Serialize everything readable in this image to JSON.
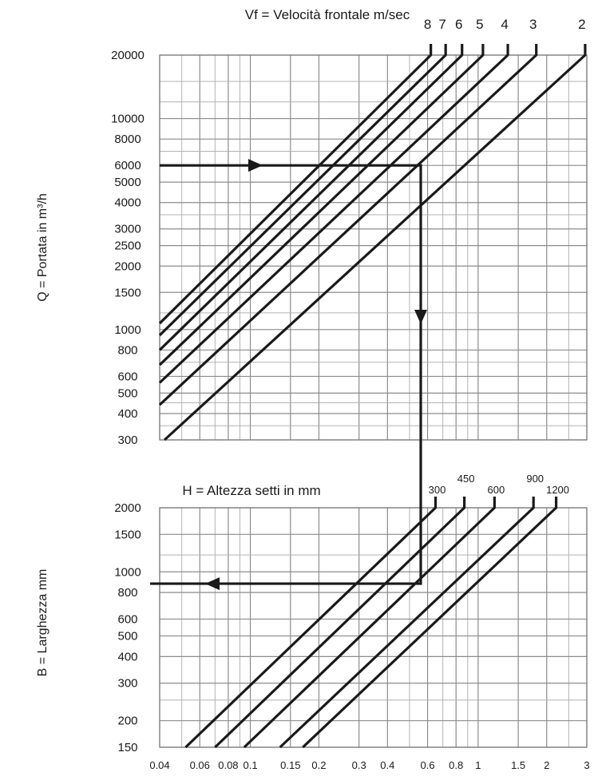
{
  "chart_data": [
    {
      "type": "line",
      "title": "Vf = Velocità frontale m/sec",
      "xlabel": "",
      "ylabel": "Q = Portata in m³/h",
      "y_scale": "log",
      "ylim": [
        300,
        20000
      ],
      "y_ticks": [
        "20000",
        "10000",
        "8000",
        "6000",
        "5000",
        "4000",
        "3000",
        "2500",
        "2000",
        "1500",
        "1000",
        "800",
        "600",
        "500",
        "400",
        "300"
      ],
      "grid": true,
      "series": [
        {
          "name": "8",
          "x": [
            0.04,
            0.62
          ],
          "y": [
            1070,
            20000
          ]
        },
        {
          "name": "7",
          "x": [
            0.04,
            0.72
          ],
          "y": [
            940,
            20000
          ]
        },
        {
          "name": "6",
          "x": [
            0.04,
            0.85
          ],
          "y": [
            800,
            20000
          ]
        },
        {
          "name": "5",
          "x": [
            0.04,
            1.05
          ],
          "y": [
            680,
            20000
          ]
        },
        {
          "name": "4",
          "x": [
            0.04,
            1.35
          ],
          "y": [
            560,
            20000
          ]
        },
        {
          "name": "3",
          "x": [
            0.04,
            1.8
          ],
          "y": [
            440,
            20000
          ]
        },
        {
          "name": "2",
          "x": [
            0.042,
            2.95
          ],
          "y": [
            300,
            20000
          ]
        }
      ],
      "example_path": {
        "y_start": 6000,
        "x_turn": 0.56
      }
    },
    {
      "type": "line",
      "title": "H = Altezza setti in mm",
      "xlabel": "",
      "ylabel": "B = Larghezza mm",
      "x_scale": "log",
      "y_scale": "log",
      "xlim": [
        0.04,
        3
      ],
      "ylim": [
        150,
        2000
      ],
      "x_ticks": [
        "0.04",
        "0.06",
        "0.08",
        "0.1",
        "0.15",
        "0.2",
        "0.3",
        "0.4",
        "0.6",
        "0.8",
        "1",
        "1.5",
        "2",
        "3"
      ],
      "y_ticks": [
        "2000",
        "1500",
        "1000",
        "800",
        "600",
        "500",
        "400",
        "300",
        "200",
        "150"
      ],
      "grid": true,
      "series": [
        {
          "name": "300",
          "x": [
            0.052,
            0.65
          ],
          "y": [
            150,
            2000
          ]
        },
        {
          "name": "450",
          "x": [
            0.07,
            0.87
          ],
          "y": [
            150,
            2000
          ]
        },
        {
          "name": "600",
          "x": [
            0.094,
            1.18
          ],
          "y": [
            150,
            2000
          ]
        },
        {
          "name": "900",
          "x": [
            0.135,
            1.75
          ],
          "y": [
            150,
            2000
          ]
        },
        {
          "name": "1200",
          "x": [
            0.17,
            2.2
          ],
          "y": [
            150,
            2000
          ]
        }
      ],
      "example_path": {
        "x_turn": 0.56,
        "y_end": 880
      }
    }
  ]
}
